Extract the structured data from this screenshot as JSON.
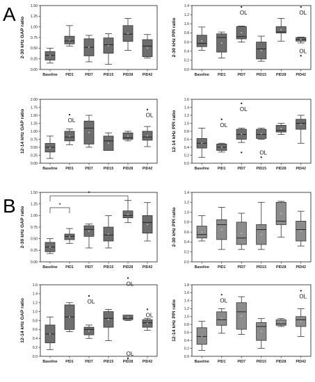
{
  "figure": {
    "panel_labels": [
      "A",
      "B"
    ],
    "outlier_label": "OL"
  },
  "chart_data": [
    {
      "type": "box",
      "ylabel": "2-30 kHz GAP ratio",
      "ylim": [
        0,
        1.5
      ],
      "yticks": [
        0,
        0.25,
        0.5,
        0.75,
        1,
        1.25,
        1.5
      ],
      "tick_labels": [
        "0.00",
        "0.25",
        "0.50",
        "0.75",
        "1.00",
        "1.25",
        "1.50"
      ],
      "categories": [
        "Baseline",
        "PID1",
        "PID7",
        "PID15",
        "PID28",
        "PID42"
      ],
      "boxes": [
        {
          "min": 0.15,
          "q1": 0.22,
          "med": 0.33,
          "q3": 0.42,
          "max": 0.5
        },
        {
          "min": 0.55,
          "q1": 0.6,
          "med": 0.67,
          "q3": 0.78,
          "max": 1.03
        },
        {
          "min": 0.18,
          "q1": 0.32,
          "med": 0.52,
          "q3": 0.72,
          "max": 0.8
        },
        {
          "min": 0.12,
          "q1": 0.38,
          "med": 0.58,
          "q3": 0.74,
          "max": 0.84
        },
        {
          "min": 0.45,
          "q1": 0.66,
          "med": 0.83,
          "q3": 1.03,
          "max": 1.2
        },
        {
          "min": 0.27,
          "q1": 0.3,
          "med": 0.55,
          "q3": 0.7,
          "max": 0.82
        }
      ],
      "outliers": []
    },
    {
      "type": "box",
      "ylabel": "2-30 kHz PPI ratio",
      "ylim": [
        0,
        1.4
      ],
      "yticks": [
        0,
        0.2,
        0.4,
        0.6,
        0.8,
        1,
        1.2,
        1.4
      ],
      "tick_labels": [
        "0.0",
        "0.2",
        "0.4",
        "0.6",
        "0.8",
        "1.0",
        "1.2",
        "1.4"
      ],
      "categories": [
        "Baseline",
        "PID1",
        "PID7",
        "PID15",
        "PID28",
        "PID42"
      ],
      "boxes": [
        {
          "min": 0.42,
          "q1": 0.5,
          "med": 0.57,
          "q3": 0.75,
          "max": 0.93
        },
        {
          "min": 0.25,
          "q1": 0.38,
          "med": 0.7,
          "q3": 0.78,
          "max": 0.82
        },
        {
          "min": 0.6,
          "q1": 0.67,
          "med": 0.72,
          "q3": 0.94,
          "max": 0.95
        },
        {
          "min": 0.18,
          "q1": 0.23,
          "med": 0.45,
          "q3": 0.6,
          "max": 0.73
        },
        {
          "min": 0.62,
          "q1": 0.8,
          "med": 0.82,
          "q3": 0.94,
          "max": 1.12
        },
        {
          "min": 0.58,
          "q1": 0.62,
          "med": 0.66,
          "q3": 0.7,
          "max": 0.71
        }
      ],
      "outliers": [
        {
          "cat": 2,
          "y": 1.37,
          "labeled": true
        },
        {
          "cat": 5,
          "y": 1.37,
          "labeled": true
        },
        {
          "cat": 5,
          "y": 0.3,
          "labeled": true
        }
      ]
    },
    {
      "type": "box",
      "ylabel": "12-14 kHz GAP ratio",
      "ylim": [
        0,
        2.0
      ],
      "yticks": [
        0,
        0.25,
        0.5,
        0.75,
        1,
        1.25,
        1.5,
        1.75,
        2
      ],
      "tick_labels": [
        "0.00",
        "0.25",
        "0.50",
        "0.75",
        "1.00",
        "1.25",
        "1.50",
        "1.75",
        "2.00"
      ],
      "categories": [
        "Baseline",
        "PID1",
        "PID7",
        "PID15",
        "PID28",
        "PID42"
      ],
      "boxes": [
        {
          "min": 0.15,
          "q1": 0.35,
          "med": 0.5,
          "q3": 0.62,
          "max": 0.85
        },
        {
          "min": 0.58,
          "q1": 0.7,
          "med": 0.82,
          "q3": 1.0,
          "max": 1.07
        },
        {
          "min": 0.5,
          "q1": 0.6,
          "med": 1.1,
          "q3": 1.32,
          "max": 1.5
        },
        {
          "min": 0.4,
          "q1": 0.4,
          "med": 0.7,
          "q3": 0.85,
          "max": 0.95
        },
        {
          "min": 0.7,
          "q1": 0.75,
          "med": 0.8,
          "q3": 0.95,
          "max": 1.0
        },
        {
          "min": 0.52,
          "q1": 0.72,
          "med": 0.82,
          "q3": 1.0,
          "max": 1.15
        }
      ],
      "outliers": [
        {
          "cat": 1,
          "y": 1.52,
          "labeled": true
        },
        {
          "cat": 5,
          "y": 1.68,
          "labeled": true
        }
      ]
    },
    {
      "type": "box",
      "ylabel": "12-14 kHz PPI ratio",
      "ylim": [
        0,
        1.6
      ],
      "yticks": [
        0,
        0.2,
        0.4,
        0.6,
        0.8,
        1,
        1.2,
        1.4,
        1.6
      ],
      "tick_labels": [
        "0.0",
        "0.2",
        "0.4",
        "0.6",
        "0.8",
        "1.0",
        "1.2",
        "1.4",
        "1.6"
      ],
      "categories": [
        "Baseline",
        "PID1",
        "PID7",
        "PID15",
        "PID28",
        "PID42"
      ],
      "boxes": [
        {
          "min": 0.15,
          "q1": 0.38,
          "med": 0.5,
          "q3": 0.62,
          "max": 0.88
        },
        {
          "min": 0.28,
          "q1": 0.32,
          "med": 0.4,
          "q3": 0.48,
          "max": 0.5
        },
        {
          "min": 0.52,
          "q1": 0.6,
          "med": 0.72,
          "q3": 0.85,
          "max": 0.88
        },
        {
          "min": 0.6,
          "q1": 0.62,
          "med": 0.72,
          "q3": 0.85,
          "max": 0.88
        },
        {
          "min": 0.72,
          "q1": 0.78,
          "med": 0.82,
          "q3": 0.95,
          "max": 1.0
        },
        {
          "min": 0.5,
          "q1": 0.85,
          "med": 1.0,
          "q3": 1.1,
          "max": 1.2
        }
      ],
      "outliers": [
        {
          "cat": 1,
          "y": 1.1,
          "labeled": true
        },
        {
          "cat": 2,
          "y": 1.5,
          "labeled": true
        },
        {
          "cat": 2,
          "y": 0.27,
          "labeled": false
        },
        {
          "cat": 3,
          "y": 0.15,
          "labeled": true
        }
      ]
    },
    {
      "type": "box",
      "ylabel": "2-30 kHz GAP ratio",
      "ylim": [
        0,
        1.5
      ],
      "yticks": [
        0,
        0.25,
        0.5,
        0.75,
        1,
        1.25,
        1.5
      ],
      "tick_labels": [
        "0.00",
        "0.25",
        "0.50",
        "0.75",
        "1.00",
        "1.25",
        "1.50"
      ],
      "categories": [
        "Baseline",
        "PID1",
        "PID7",
        "PID15",
        "PID28",
        "PID42"
      ],
      "boxes": [
        {
          "min": 0.18,
          "q1": 0.22,
          "med": 0.32,
          "q3": 0.42,
          "max": 0.5
        },
        {
          "min": 0.4,
          "q1": 0.48,
          "med": 0.55,
          "q3": 0.6,
          "max": 0.72
        },
        {
          "min": 0.3,
          "q1": 0.55,
          "med": 0.7,
          "q3": 0.78,
          "max": 0.82
        },
        {
          "min": 0.3,
          "q1": 0.45,
          "med": 0.58,
          "q3": 0.75,
          "max": 1.0
        },
        {
          "min": 0.85,
          "q1": 0.95,
          "med": 1.0,
          "q3": 1.1,
          "max": 1.33
        },
        {
          "min": 0.45,
          "q1": 0.62,
          "med": 0.85,
          "q3": 1.0,
          "max": 1.28
        }
      ],
      "outliers": [],
      "significance": [
        {
          "from": 0,
          "to": 1,
          "label": "*"
        },
        {
          "from": 0,
          "to": 4,
          "label": "*"
        }
      ]
    },
    {
      "type": "box",
      "ylabel": "2-30 kHz PPI ratio",
      "ylim": [
        0,
        1.4
      ],
      "yticks": [
        0,
        0.2,
        0.4,
        0.6,
        0.8,
        1,
        1.2,
        1.4
      ],
      "tick_labels": [
        "0.0",
        "0.2",
        "0.4",
        "0.6",
        "0.8",
        "1.0",
        "1.2",
        "1.4"
      ],
      "categories": [
        "Baseline",
        "PID1",
        "PID7",
        "PID15",
        "PID28",
        "PID42"
      ],
      "boxes": [
        {
          "min": 0.42,
          "q1": 0.48,
          "med": 0.55,
          "q3": 0.72,
          "max": 0.93
        },
        {
          "min": 0.25,
          "q1": 0.45,
          "med": 0.75,
          "q3": 0.85,
          "max": 1.1
        },
        {
          "min": 0.25,
          "q1": 0.35,
          "med": 0.48,
          "q3": 0.8,
          "max": 0.98
        },
        {
          "min": 0.25,
          "q1": 0.35,
          "med": 0.65,
          "q3": 0.75,
          "max": 1.2
        },
        {
          "min": 0.5,
          "q1": 0.75,
          "med": 0.82,
          "q3": 1.2,
          "max": 1.22
        },
        {
          "min": 0.32,
          "q1": 0.42,
          "med": 0.65,
          "q3": 0.82,
          "max": 1.02
        }
      ],
      "outliers": []
    },
    {
      "type": "box",
      "ylabel": "12-14 kHz GAP ratio",
      "ylim": [
        0,
        1.6
      ],
      "yticks": [
        0,
        0.2,
        0.4,
        0.6,
        0.8,
        1,
        1.2,
        1.4,
        1.6
      ],
      "tick_labels": [
        "0.0",
        "0.2",
        "0.4",
        "0.6",
        "0.8",
        "1.0",
        "1.2",
        "1.4",
        "1.6"
      ],
      "categories": [
        "Baseline",
        "PID1",
        "PID7",
        "PID15",
        "PID28",
        "PID42"
      ],
      "boxes": [
        {
          "min": 0.15,
          "q1": 0.3,
          "med": 0.5,
          "q3": 0.7,
          "max": 0.88
        },
        {
          "min": 0.55,
          "q1": 0.6,
          "med": 0.88,
          "q3": 1.15,
          "max": 1.2
        },
        {
          "min": 0.4,
          "q1": 0.48,
          "med": 0.6,
          "q3": 0.65,
          "max": 0.7
        },
        {
          "min": 0.35,
          "q1": 0.65,
          "med": 0.85,
          "q3": 1.0,
          "max": 1.05
        },
        {
          "min": 0.8,
          "q1": 0.82,
          "med": 0.85,
          "q3": 0.92,
          "max": 0.92
        },
        {
          "min": 0.58,
          "q1": 0.65,
          "med": 0.75,
          "q3": 0.82,
          "max": 0.85
        }
      ],
      "outliers": [
        {
          "cat": 2,
          "y": 1.35,
          "labeled": true
        },
        {
          "cat": 4,
          "y": 1.75,
          "labeled": true
        },
        {
          "cat": 4,
          "y": -0.05,
          "labeled": true
        },
        {
          "cat": 5,
          "y": 1.05,
          "labeled": true
        }
      ]
    },
    {
      "type": "box",
      "ylabel": "12-14 kHz PPI ratio",
      "ylim": [
        0,
        1.8
      ],
      "yticks": [
        0,
        0.2,
        0.4,
        0.6,
        0.8,
        1,
        1.2,
        1.4,
        1.6,
        1.8
      ],
      "tick_labels": [
        "0.0",
        "0.2",
        "0.4",
        "0.6",
        "0.8",
        "1.0",
        "1.2",
        "1.4",
        "1.6",
        "1.8"
      ],
      "categories": [
        "Baseline",
        "PID1",
        "PID7",
        "PID15",
        "PID28",
        "PID42"
      ],
      "boxes": [
        {
          "min": 0.15,
          "q1": 0.3,
          "med": 0.5,
          "q3": 0.72,
          "max": 0.88
        },
        {
          "min": 0.58,
          "q1": 0.78,
          "med": 0.92,
          "q3": 1.12,
          "max": 1.2
        },
        {
          "min": 0.55,
          "q1": 0.68,
          "med": 1.12,
          "q3": 1.35,
          "max": 1.5
        },
        {
          "min": 0.2,
          "q1": 0.4,
          "med": 0.75,
          "q3": 0.85,
          "max": 0.95
        },
        {
          "min": 0.75,
          "q1": 0.78,
          "med": 0.82,
          "q3": 0.92,
          "max": 0.95
        },
        {
          "min": 0.5,
          "q1": 0.75,
          "med": 0.92,
          "q3": 1.0,
          "max": 1.2
        }
      ],
      "outliers": [
        {
          "cat": 1,
          "y": 1.55,
          "labeled": true
        },
        {
          "cat": 5,
          "y": 1.65,
          "labeled": true
        }
      ]
    }
  ]
}
